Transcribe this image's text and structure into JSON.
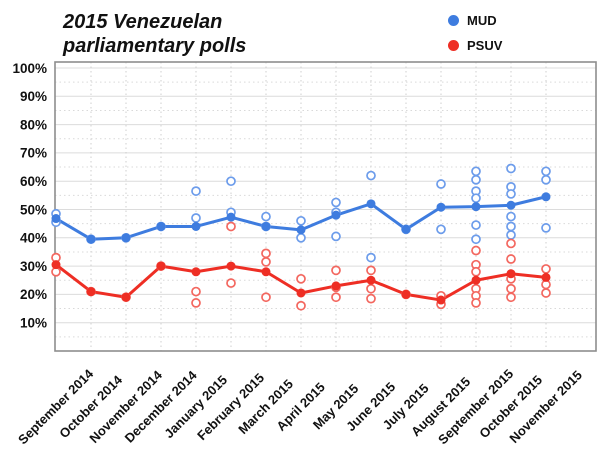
{
  "title": {
    "line1": "2015 Venezuelan",
    "line2": "parliamentary polls"
  },
  "legend": {
    "items": [
      {
        "label": "MUD",
        "color": "#3e7cdf"
      },
      {
        "label": "PSUV",
        "color": "#ee2e24"
      }
    ]
  },
  "chart_data": {
    "type": "line+scatter",
    "title": "2015 Venezuelan parliamentary polls",
    "categories": [
      "September 2014",
      "October 2014",
      "November 2014",
      "December 2014",
      "January 2015",
      "February 2015",
      "March 2015",
      "April 2015",
      "May 2015",
      "June 2015",
      "July 2015",
      "August 2015",
      "September 2015",
      "October 2015",
      "November 2015"
    ],
    "y_axis": {
      "min": 0,
      "max": 102,
      "ticks": [
        10,
        20,
        30,
        40,
        50,
        60,
        70,
        80,
        90,
        100
      ],
      "minor_step": 5,
      "tick_suffix": "%"
    },
    "legend_position": "top-right",
    "grid": "major-solid-plus-minor-dotted",
    "series": [
      {
        "name": "MUD",
        "color": "#3e7cdf",
        "poll_color": "#6c9ceb",
        "averages": [
          46.8,
          39.5,
          40,
          44,
          44,
          47.3,
          44,
          42.8,
          48,
          52,
          43,
          50.8,
          51,
          51.5,
          54.5
        ],
        "polls": [
          [
            48.5,
            45.5
          ],
          [
            39.5
          ],
          [
            40
          ],
          [
            44
          ],
          [
            56.5,
            47
          ],
          [
            60,
            49
          ],
          [
            47.5,
            44
          ],
          [
            46,
            40
          ],
          [
            52.5,
            49,
            40.5
          ],
          [
            62,
            33
          ],
          [
            43
          ],
          [
            59,
            43
          ],
          [
            63.5,
            60.5,
            56.5,
            54,
            44.5,
            39.5
          ],
          [
            64.5,
            58,
            55.5,
            47.5,
            44,
            41
          ],
          [
            63.5,
            60.5,
            43.5
          ]
        ]
      },
      {
        "name": "PSUV",
        "color": "#ee2e24",
        "poll_color": "#f3675f",
        "averages": [
          30.5,
          21,
          19,
          30,
          28,
          30,
          28,
          20.5,
          23,
          25,
          20,
          18,
          25,
          27.3,
          26
        ],
        "polls": [
          [
            33,
            28
          ],
          [
            21
          ],
          [
            19
          ],
          [
            30
          ],
          [
            21,
            17
          ],
          [
            44,
            24
          ],
          [
            34.5,
            31.5,
            19
          ],
          [
            25.5,
            16
          ],
          [
            28.5,
            22.5,
            19
          ],
          [
            28.5,
            22,
            18.5
          ],
          [
            20
          ],
          [
            19.5,
            16.5
          ],
          [
            35.5,
            30.5,
            28,
            22,
            19.5,
            17
          ],
          [
            38,
            32.5,
            25.5,
            22,
            19
          ],
          [
            29,
            23.5,
            20.5
          ]
        ]
      }
    ]
  }
}
